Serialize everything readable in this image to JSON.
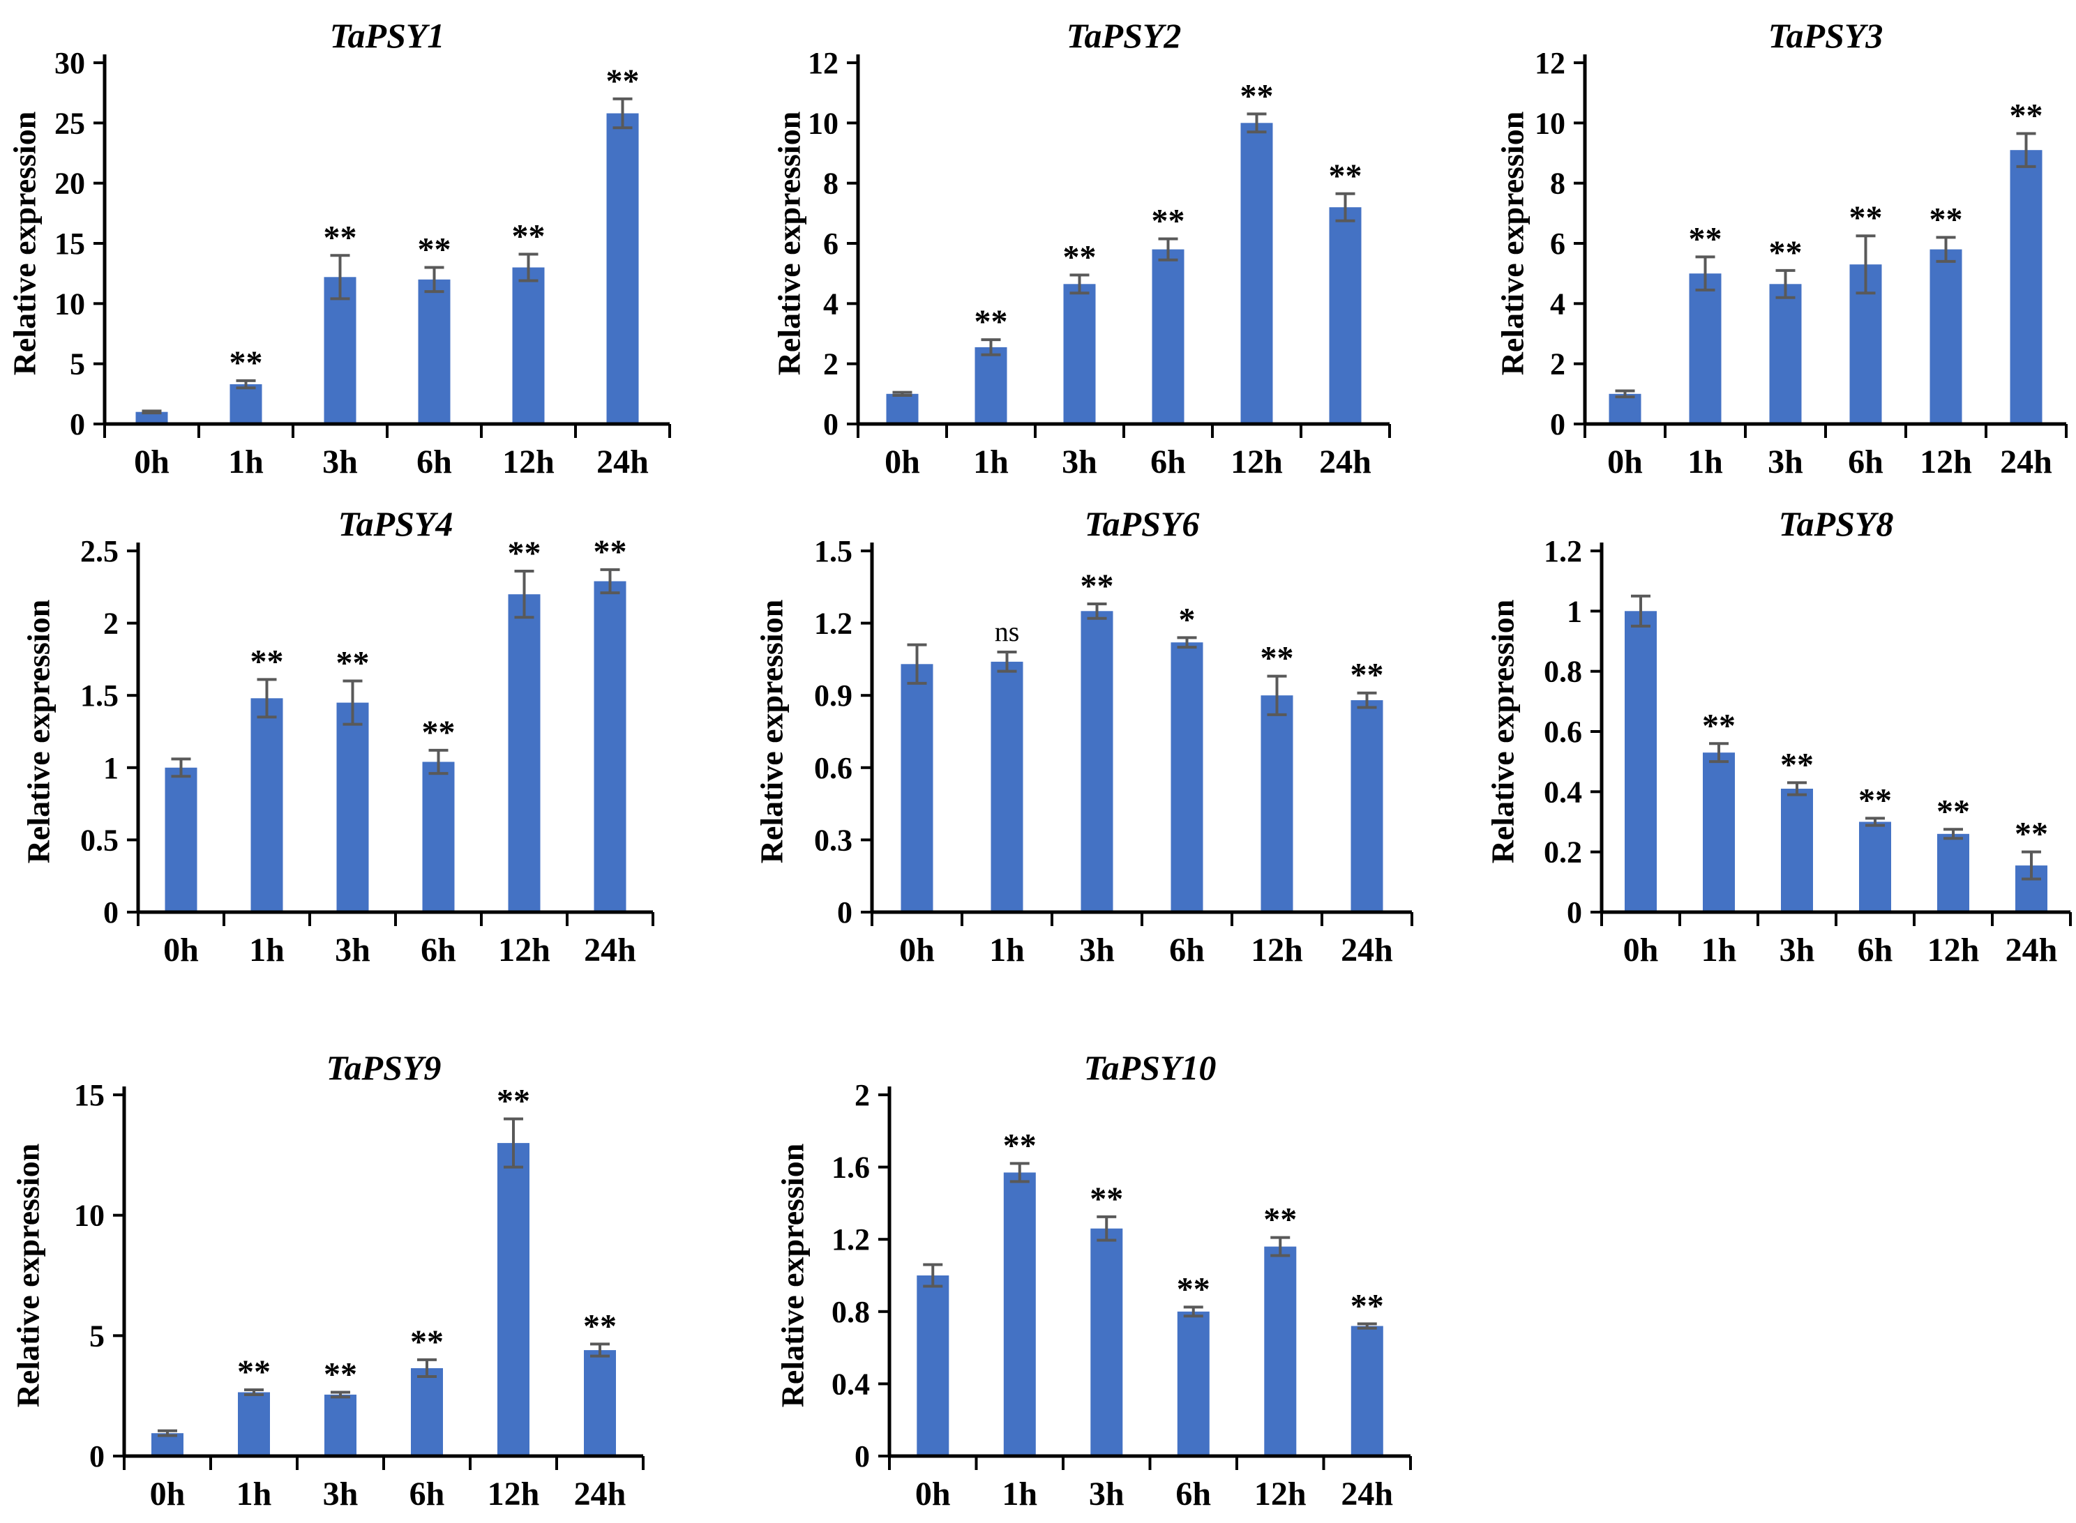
{
  "figure": {
    "description_labels": {
      "y_axis_title": "Relative expression"
    }
  },
  "colors": {
    "bar": "#4472C4",
    "error_bar": "#595959",
    "axis": "#000000",
    "text": "#000000",
    "background": "#FFFFFF"
  },
  "chart_data": [
    {
      "type": "bar",
      "title": "TaPSY1",
      "ylabel": "Relative expression",
      "xlabel": "",
      "categories": [
        "0h",
        "1h",
        "3h",
        "6h",
        "12h",
        "24h"
      ],
      "values": [
        1.0,
        3.3,
        12.2,
        12.0,
        13.0,
        25.8
      ],
      "errors": [
        0.08,
        0.3,
        1.8,
        1.0,
        1.1,
        1.2
      ],
      "significance": [
        "",
        "**",
        "**",
        "**",
        "**",
        "**"
      ],
      "ylim": [
        0,
        30
      ],
      "yticks": [
        0,
        5,
        10,
        15,
        20,
        25,
        30
      ],
      "ytick_labels": [
        "0",
        "5",
        "10",
        "15",
        "20",
        "25",
        "30"
      ],
      "grid": false,
      "legend": "none"
    },
    {
      "type": "bar",
      "title": "TaPSY2",
      "ylabel": "Relative expression",
      "xlabel": "",
      "categories": [
        "0h",
        "1h",
        "3h",
        "6h",
        "12h",
        "24h"
      ],
      "values": [
        1.0,
        2.55,
        4.65,
        5.8,
        10.0,
        7.2
      ],
      "errors": [
        0.05,
        0.25,
        0.3,
        0.35,
        0.3,
        0.45
      ],
      "significance": [
        "",
        "**",
        "**",
        "**",
        "**",
        "**"
      ],
      "ylim": [
        0,
        12
      ],
      "yticks": [
        0,
        2,
        4,
        6,
        8,
        10,
        12
      ],
      "ytick_labels": [
        "0",
        "2",
        "4",
        "6",
        "8",
        "10",
        "12"
      ],
      "grid": false,
      "legend": "none"
    },
    {
      "type": "bar",
      "title": "TaPSY3",
      "ylabel": "Relative expression",
      "xlabel": "",
      "categories": [
        "0h",
        "1h",
        "3h",
        "6h",
        "12h",
        "24h"
      ],
      "values": [
        1.0,
        5.0,
        4.65,
        5.3,
        5.8,
        9.1
      ],
      "errors": [
        0.1,
        0.55,
        0.45,
        0.95,
        0.4,
        0.55
      ],
      "significance": [
        "",
        "**",
        "**",
        "**",
        "**",
        "**"
      ],
      "ylim": [
        0,
        12
      ],
      "yticks": [
        0,
        2,
        4,
        6,
        8,
        10,
        12
      ],
      "ytick_labels": [
        "0",
        "2",
        "4",
        "6",
        "8",
        "10",
        "12"
      ],
      "grid": false,
      "legend": "none"
    },
    {
      "type": "bar",
      "title": "TaPSY4",
      "ylabel": "Relative expression",
      "xlabel": "",
      "categories": [
        "0h",
        "1h",
        "3h",
        "6h",
        "12h",
        "24h"
      ],
      "values": [
        1.0,
        1.48,
        1.45,
        1.04,
        2.2,
        2.29
      ],
      "errors": [
        0.06,
        0.13,
        0.15,
        0.08,
        0.16,
        0.08
      ],
      "significance": [
        "",
        "**",
        "**",
        "**",
        "**",
        "**"
      ],
      "ylim": [
        0,
        2.5
      ],
      "yticks": [
        0,
        0.5,
        1,
        1.5,
        2,
        2.5
      ],
      "ytick_labels": [
        "0",
        "0.5",
        "1",
        "1.5",
        "2",
        "2.5"
      ],
      "grid": false,
      "legend": "none"
    },
    {
      "type": "bar",
      "title": "TaPSY6",
      "ylabel": "Relative expression",
      "xlabel": "",
      "categories": [
        "0h",
        "1h",
        "3h",
        "6h",
        "12h",
        "24h"
      ],
      "values": [
        1.03,
        1.04,
        1.25,
        1.12,
        0.9,
        0.88
      ],
      "errors": [
        0.08,
        0.04,
        0.03,
        0.02,
        0.08,
        0.03
      ],
      "significance": [
        "",
        "ns",
        "**",
        "*",
        "**",
        "**"
      ],
      "ylim": [
        0,
        1.5
      ],
      "yticks": [
        0,
        0.3,
        0.6,
        0.9,
        1.2,
        1.5
      ],
      "ytick_labels": [
        "0",
        "0.3",
        "0.6",
        "0.9",
        "1.2",
        "1.5"
      ],
      "grid": false,
      "legend": "none"
    },
    {
      "type": "bar",
      "title": "TaPSY8",
      "ylabel": "Relative expression",
      "xlabel": "",
      "categories": [
        "0h",
        "1h",
        "3h",
        "6h",
        "12h",
        "24h"
      ],
      "values": [
        1.0,
        0.53,
        0.41,
        0.3,
        0.26,
        0.155
      ],
      "errors": [
        0.05,
        0.03,
        0.02,
        0.012,
        0.015,
        0.045
      ],
      "significance": [
        "",
        "**",
        "**",
        "**",
        "**",
        "**"
      ],
      "ylim": [
        0,
        1.2
      ],
      "yticks": [
        0,
        0.2,
        0.4,
        0.6,
        0.8,
        1,
        1.2
      ],
      "ytick_labels": [
        "0",
        "0.2",
        "0.4",
        "0.6",
        "0.8",
        "1",
        "1.2"
      ],
      "grid": false,
      "legend": "none"
    },
    {
      "type": "bar",
      "title": "TaPSY9",
      "ylabel": "Relative expression",
      "xlabel": "",
      "categories": [
        "0h",
        "1h",
        "3h",
        "6h",
        "12h",
        "24h"
      ],
      "values": [
        0.95,
        2.65,
        2.55,
        3.65,
        13.0,
        4.4
      ],
      "errors": [
        0.1,
        0.1,
        0.1,
        0.35,
        1.0,
        0.25
      ],
      "significance": [
        "",
        "**",
        "**",
        "**",
        "**",
        "**"
      ],
      "ylim": [
        0,
        15
      ],
      "yticks": [
        0,
        5,
        10,
        15
      ],
      "ytick_labels": [
        "0",
        "5",
        "10",
        "15"
      ],
      "grid": false,
      "legend": "none"
    },
    {
      "type": "bar",
      "title": "TaPSY10",
      "ylabel": "Relative expression",
      "xlabel": "",
      "categories": [
        "0h",
        "1h",
        "3h",
        "6h",
        "12h",
        "24h"
      ],
      "values": [
        1.0,
        1.57,
        1.26,
        0.8,
        1.16,
        0.72
      ],
      "errors": [
        0.06,
        0.05,
        0.065,
        0.025,
        0.05,
        0.012
      ],
      "significance": [
        "",
        "**",
        "**",
        "**",
        "**",
        "**"
      ],
      "ylim": [
        0,
        2
      ],
      "yticks": [
        0,
        0.4,
        0.8,
        1.2,
        1.6,
        2
      ],
      "ytick_labels": [
        "0",
        "0.4",
        "0.8",
        "1.2",
        "1.6",
        "2"
      ],
      "grid": false,
      "legend": "none"
    }
  ]
}
